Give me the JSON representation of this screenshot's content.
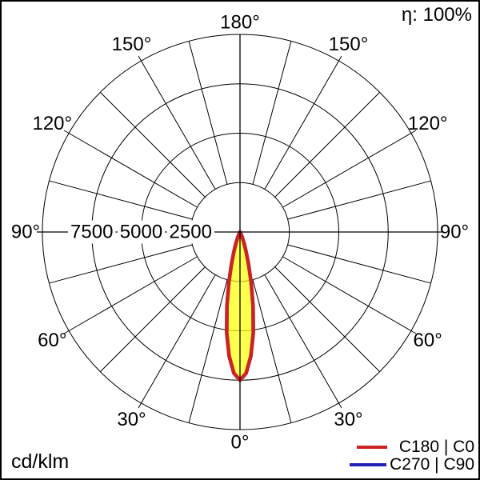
{
  "header": {
    "efficiency": "η: 100%"
  },
  "footer": {
    "unit": "cd/klm"
  },
  "legend": {
    "items": [
      {
        "label": "C180 | C0",
        "color": "#cc2222"
      },
      {
        "label": "C270 | C90",
        "color": "#2222b2"
      }
    ]
  },
  "chart_data": {
    "type": "line",
    "polar": true,
    "description": "luminous-intensity-distribution-polar-diagram",
    "units": "cd/klm",
    "efficiency_text": "η: 100%",
    "radial_max": 10000,
    "radial_tick_step": 2500,
    "radial_tick_labels": [
      "7500",
      "5000",
      "2500"
    ],
    "radial_tick_values": [
      7500,
      5000,
      2500
    ],
    "angle_step_deg": 15,
    "angle_label_values": [
      0,
      30,
      60,
      90,
      120,
      150,
      180
    ],
    "angle_labels": [
      "0°",
      "30°",
      "60°",
      "90°",
      "120°",
      "150°",
      "180°"
    ],
    "grid": true,
    "legend_position": "bottom-right",
    "fill_color": "rgba(255,255,0,0.45)",
    "series": [
      {
        "name": "C180 | C0",
        "color": "#cc2222",
        "gamma_deg": [
          0,
          2.5,
          5,
          7.5,
          10,
          12.5,
          15,
          17.5,
          20,
          22.5,
          25,
          27.5,
          30,
          45,
          60,
          90,
          120,
          150,
          180
        ],
        "intensity_cd_per_klm": [
          7500,
          7150,
          6300,
          5150,
          3800,
          2600,
          1650,
          1000,
          590,
          330,
          170,
          80,
          30,
          0,
          0,
          0,
          0,
          0,
          0
        ]
      },
      {
        "name": "C270 | C90",
        "color": "#2222b2",
        "gamma_deg": [
          0,
          2.5,
          5,
          7.5,
          10,
          12.5,
          15,
          17.5,
          20,
          22.5,
          25,
          27.5,
          30,
          45,
          60,
          90,
          120,
          150,
          180
        ],
        "intensity_cd_per_klm": [
          7500,
          7150,
          6300,
          5150,
          3800,
          2600,
          1650,
          1000,
          590,
          330,
          170,
          80,
          30,
          0,
          0,
          0,
          0,
          0,
          0
        ]
      }
    ]
  }
}
